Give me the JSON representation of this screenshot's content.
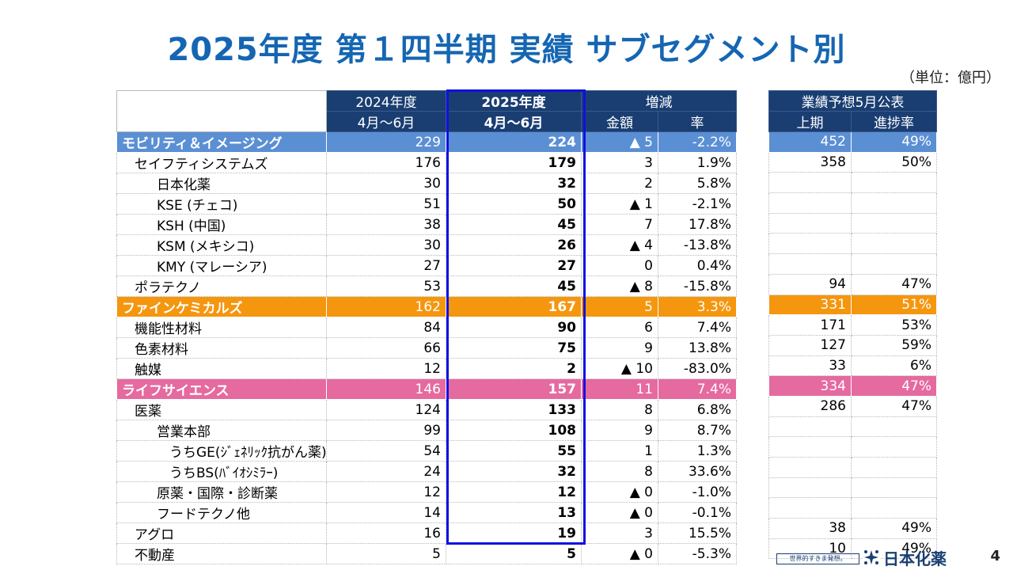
{
  "title": "2025年度 第１四半期 実績 サブセグメント別",
  "unit": "（単位：億円）",
  "header": {
    "fy2024": "2024年度",
    "fy2024_period": "4月～6月",
    "fy2025": "2025年度",
    "fy2025_period": "4月～6月",
    "change": "増減",
    "change_amount": "金額",
    "change_rate": "率",
    "forecast": "業績予想5月公表",
    "forecast_half": "上期",
    "forecast_progress": "進捗率"
  },
  "rows": [
    {
      "name": "モビリティ＆イメージング",
      "v2024": "229",
      "v2025": "224",
      "amt": "▲ 5",
      "rate": "-2.2%",
      "fc": "452",
      "prog": "49%"
    },
    {
      "name": "セイフティシステムズ",
      "v2024": "176",
      "v2025": "179",
      "amt": "3",
      "rate": "1.9%",
      "fc": "358",
      "prog": "50%"
    },
    {
      "name": "日本化薬",
      "v2024": "30",
      "v2025": "32",
      "amt": "2",
      "rate": "5.8%",
      "fc": "",
      "prog": ""
    },
    {
      "name": "KSE (チェコ)",
      "v2024": "51",
      "v2025": "50",
      "amt": "▲ 1",
      "rate": "-2.1%",
      "fc": "",
      "prog": ""
    },
    {
      "name": "KSH (中国)",
      "v2024": "38",
      "v2025": "45",
      "amt": "7",
      "rate": "17.8%",
      "fc": "",
      "prog": ""
    },
    {
      "name": "KSM (メキシコ)",
      "v2024": "30",
      "v2025": "26",
      "amt": "▲ 4",
      "rate": "-13.8%",
      "fc": "",
      "prog": ""
    },
    {
      "name": "KMY (マレーシア)",
      "v2024": "27",
      "v2025": "27",
      "amt": "0",
      "rate": "0.4%",
      "fc": "",
      "prog": ""
    },
    {
      "name": "ポラテクノ",
      "v2024": "53",
      "v2025": "45",
      "amt": "▲ 8",
      "rate": "-15.8%",
      "fc": "94",
      "prog": "47%"
    },
    {
      "name": "ファインケミカルズ",
      "v2024": "162",
      "v2025": "167",
      "amt": "5",
      "rate": "3.3%",
      "fc": "331",
      "prog": "51%"
    },
    {
      "name": "機能性材料",
      "v2024": "84",
      "v2025": "90",
      "amt": "6",
      "rate": "7.4%",
      "fc": "171",
      "prog": "53%"
    },
    {
      "name": "色素材料",
      "v2024": "66",
      "v2025": "75",
      "amt": "9",
      "rate": "13.8%",
      "fc": "127",
      "prog": "59%"
    },
    {
      "name": "触媒",
      "v2024": "12",
      "v2025": "2",
      "amt": "▲ 10",
      "rate": "-83.0%",
      "fc": "33",
      "prog": "6%"
    },
    {
      "name": "ライフサイエンス",
      "v2024": "146",
      "v2025": "157",
      "amt": "11",
      "rate": "7.4%",
      "fc": "334",
      "prog": "47%"
    },
    {
      "name": "医薬",
      "v2024": "124",
      "v2025": "133",
      "amt": "8",
      "rate": "6.8%",
      "fc": "286",
      "prog": "47%"
    },
    {
      "name": "営業本部",
      "v2024": "99",
      "v2025": "108",
      "amt": "9",
      "rate": "8.7%",
      "fc": "",
      "prog": ""
    },
    {
      "name": "うちGE(ｼﾞｪﾈﾘｯｸ抗がん薬)",
      "v2024": "54",
      "v2025": "55",
      "amt": "1",
      "rate": "1.3%",
      "fc": "",
      "prog": ""
    },
    {
      "name": "うちBS(ﾊﾞｲｵｼﾐﾗｰ)",
      "v2024": "24",
      "v2025": "32",
      "amt": "8",
      "rate": "33.6%",
      "fc": "",
      "prog": ""
    },
    {
      "name": "原薬・国際・診断薬",
      "v2024": "12",
      "v2025": "12",
      "amt": "▲ 0",
      "rate": "-1.0%",
      "fc": "",
      "prog": ""
    },
    {
      "name": "フードテクノ他",
      "v2024": "14",
      "v2025": "13",
      "amt": "▲ 0",
      "rate": "-0.1%",
      "fc": "",
      "prog": ""
    },
    {
      "name": "アグロ",
      "v2024": "16",
      "v2025": "19",
      "amt": "3",
      "rate": "15.5%",
      "fc": "38",
      "prog": "49%"
    },
    {
      "name": "不動産",
      "v2024": "5",
      "v2025": "5",
      "amt": "▲ 0",
      "rate": "-5.3%",
      "fc": "10",
      "prog": "49%"
    }
  ],
  "footer": {
    "slogan": "世界的すきま発想。",
    "logo": "日本化薬",
    "page": "4"
  },
  "colors": {
    "title": "#1566b2",
    "header": "#1a3e72",
    "mobility": "#5b8fd4",
    "fine_chemicals": "#f5960f",
    "life_science": "#e56a9f",
    "highlight_box": "#1010e0"
  }
}
